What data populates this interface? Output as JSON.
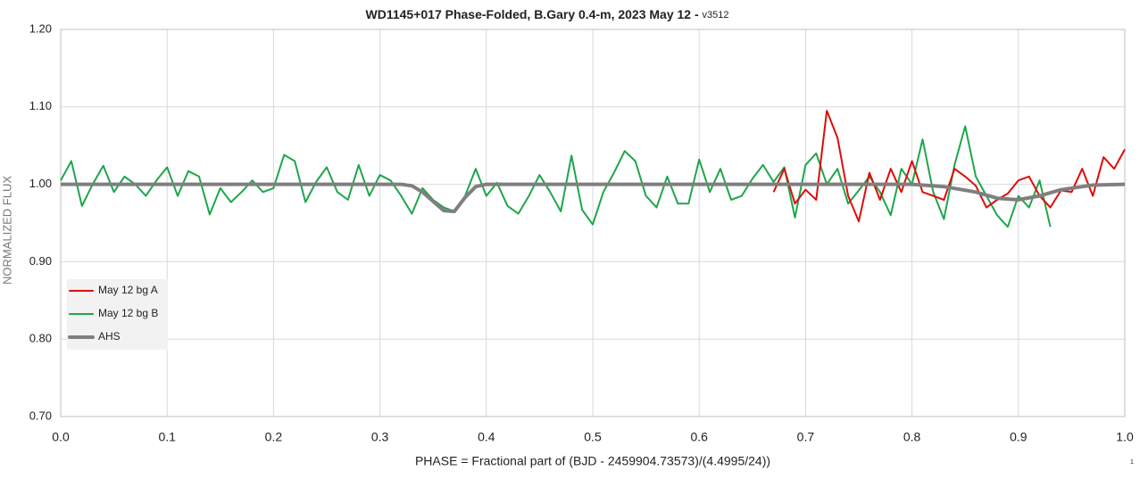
{
  "chart_data": {
    "type": "line",
    "title": "WD1145+017 Phase-Folded, B.Gary 0.4-m, 2023 May 12 - ",
    "subtitle": "v3512",
    "xlabel": "PHASE = Fractional part of (BJD - 2459904.73573)/(4.4995/24))",
    "ylabel": "NORMALIZED FLUX",
    "footnote": "1",
    "xlim": [
      0,
      1
    ],
    "ylim": [
      0.7,
      1.2
    ],
    "xticks": [
      {
        "value": 0,
        "label": "0.0"
      },
      0.1,
      0.2,
      0.3,
      0.4,
      0.5,
      0.6,
      0.7,
      0.8,
      0.9,
      {
        "value": 1,
        "label": "1.0"
      }
    ],
    "yticks": [
      {
        "value": 0.7,
        "label": "0.70"
      },
      {
        "value": 0.8,
        "label": "0.80"
      },
      {
        "value": 0.9,
        "label": "0.90"
      },
      {
        "value": 1.0,
        "label": "1.00"
      },
      {
        "value": 1.1,
        "label": "1.10"
      },
      {
        "value": 1.2,
        "label": "1.20"
      }
    ],
    "grid": true,
    "legend": "left",
    "series": [
      {
        "name": "May 12 bg A",
        "color": "#e00b0b",
        "width": 2,
        "x": [
          0.67,
          0.68,
          0.69,
          0.7,
          0.71,
          0.72,
          0.73,
          0.74,
          0.75,
          0.76,
          0.77,
          0.78,
          0.79,
          0.8,
          0.81,
          0.82,
          0.83,
          0.84,
          0.85,
          0.86,
          0.87,
          0.88,
          0.89,
          0.9,
          0.91,
          0.92,
          0.93,
          0.94,
          0.95,
          0.96,
          0.97,
          0.98,
          0.99,
          1.0
        ],
        "values": [
          0.99,
          1.02,
          0.975,
          0.993,
          0.98,
          1.095,
          1.06,
          0.985,
          0.952,
          1.015,
          0.98,
          1.02,
          0.99,
          1.03,
          0.99,
          0.985,
          0.98,
          1.02,
          1.01,
          0.998,
          0.97,
          0.98,
          0.988,
          1.005,
          1.01,
          0.985,
          0.97,
          0.992,
          0.99,
          1.02,
          0.985,
          1.035,
          1.02,
          1.045
        ]
      },
      {
        "name": "May 12 bg B",
        "color": "#1ea64b",
        "width": 2,
        "x": [
          0.0,
          0.01,
          0.02,
          0.03,
          0.04,
          0.05,
          0.06,
          0.07,
          0.08,
          0.09,
          0.1,
          0.11,
          0.12,
          0.13,
          0.14,
          0.15,
          0.16,
          0.17,
          0.18,
          0.19,
          0.2,
          0.21,
          0.22,
          0.23,
          0.24,
          0.25,
          0.26,
          0.27,
          0.28,
          0.29,
          0.3,
          0.31,
          0.32,
          0.33,
          0.34,
          0.35,
          0.36,
          0.37,
          0.38,
          0.39,
          0.4,
          0.41,
          0.42,
          0.43,
          0.44,
          0.45,
          0.46,
          0.47,
          0.48,
          0.49,
          0.5,
          0.51,
          0.52,
          0.53,
          0.54,
          0.55,
          0.56,
          0.57,
          0.58,
          0.59,
          0.6,
          0.61,
          0.62,
          0.63,
          0.64,
          0.65,
          0.66,
          0.67,
          0.68,
          0.69,
          0.7,
          0.71,
          0.72,
          0.73,
          0.74,
          0.75,
          0.76,
          0.77,
          0.78,
          0.79,
          0.8,
          0.81,
          0.82,
          0.83,
          0.84,
          0.85,
          0.86,
          0.87,
          0.88,
          0.89,
          0.9,
          0.91,
          0.92,
          0.93
        ],
        "values": [
          1.005,
          1.03,
          0.972,
          1.0,
          1.024,
          0.99,
          1.01,
          1.0,
          0.985,
          1.005,
          1.022,
          0.985,
          1.017,
          1.01,
          0.961,
          0.995,
          0.977,
          0.99,
          1.005,
          0.99,
          0.995,
          1.038,
          1.03,
          0.977,
          1.003,
          1.022,
          0.99,
          0.98,
          1.025,
          0.985,
          1.012,
          1.005,
          0.985,
          0.962,
          0.995,
          0.98,
          0.97,
          0.965,
          0.985,
          1.02,
          0.985,
          1.002,
          0.972,
          0.962,
          0.985,
          1.012,
          0.99,
          0.965,
          1.037,
          0.967,
          0.948,
          0.99,
          1.015,
          1.043,
          1.03,
          0.985,
          0.97,
          1.01,
          0.975,
          0.975,
          1.032,
          0.99,
          1.02,
          0.98,
          0.985,
          1.007,
          1.025,
          1.003,
          1.022,
          0.957,
          1.025,
          1.04,
          1.0,
          1.02,
          0.975,
          0.992,
          1.01,
          0.99,
          0.96,
          1.02,
          1.0,
          1.058,
          0.99,
          0.955,
          1.025,
          1.075,
          1.01,
          0.985,
          0.96,
          0.945,
          0.985,
          0.97,
          1.005,
          0.945
        ]
      },
      {
        "name": "AHS",
        "color": "#7f7f7f",
        "width": 4,
        "x": [
          0,
          0.32,
          0.33,
          0.34,
          0.35,
          0.36,
          0.37,
          0.38,
          0.39,
          0.4,
          0.8,
          0.83,
          0.86,
          0.88,
          0.9,
          0.92,
          0.94,
          0.97,
          1.0
        ],
        "values": [
          1,
          1,
          0.998,
          0.99,
          0.978,
          0.966,
          0.965,
          0.983,
          0.997,
          1,
          1,
          0.997,
          0.99,
          0.982,
          0.98,
          0.985,
          0.993,
          0.999,
          1
        ]
      }
    ]
  }
}
